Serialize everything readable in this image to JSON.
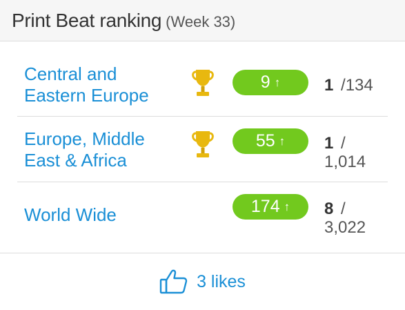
{
  "header": {
    "title": "Print Beat ranking",
    "week": "(Week 33)"
  },
  "rankings": [
    {
      "region_line1": "Central and",
      "region_line2": "Eastern Europe",
      "trophy": true,
      "score": "9",
      "trend": "up",
      "position": "1",
      "total": "/134"
    },
    {
      "region_line1": "Europe, Middle",
      "region_line2": "East & Africa",
      "trophy": true,
      "score": "55",
      "trend": "up",
      "position": "1",
      "total": "/",
      "total_line2": "1,014"
    },
    {
      "region_line1": "World Wide",
      "region_line2": "",
      "trophy": false,
      "score": "174",
      "trend": "up",
      "position": "8",
      "total": "/",
      "total_line2": "3,022"
    }
  ],
  "footer": {
    "likes_label": "3 likes",
    "icon": "thumbs-up-icon"
  },
  "colors": {
    "accent_blue": "#1a8fd6",
    "pill_green": "#72c91e",
    "trophy_gold": "#e8b80f",
    "header_bg": "#f6f6f6"
  }
}
